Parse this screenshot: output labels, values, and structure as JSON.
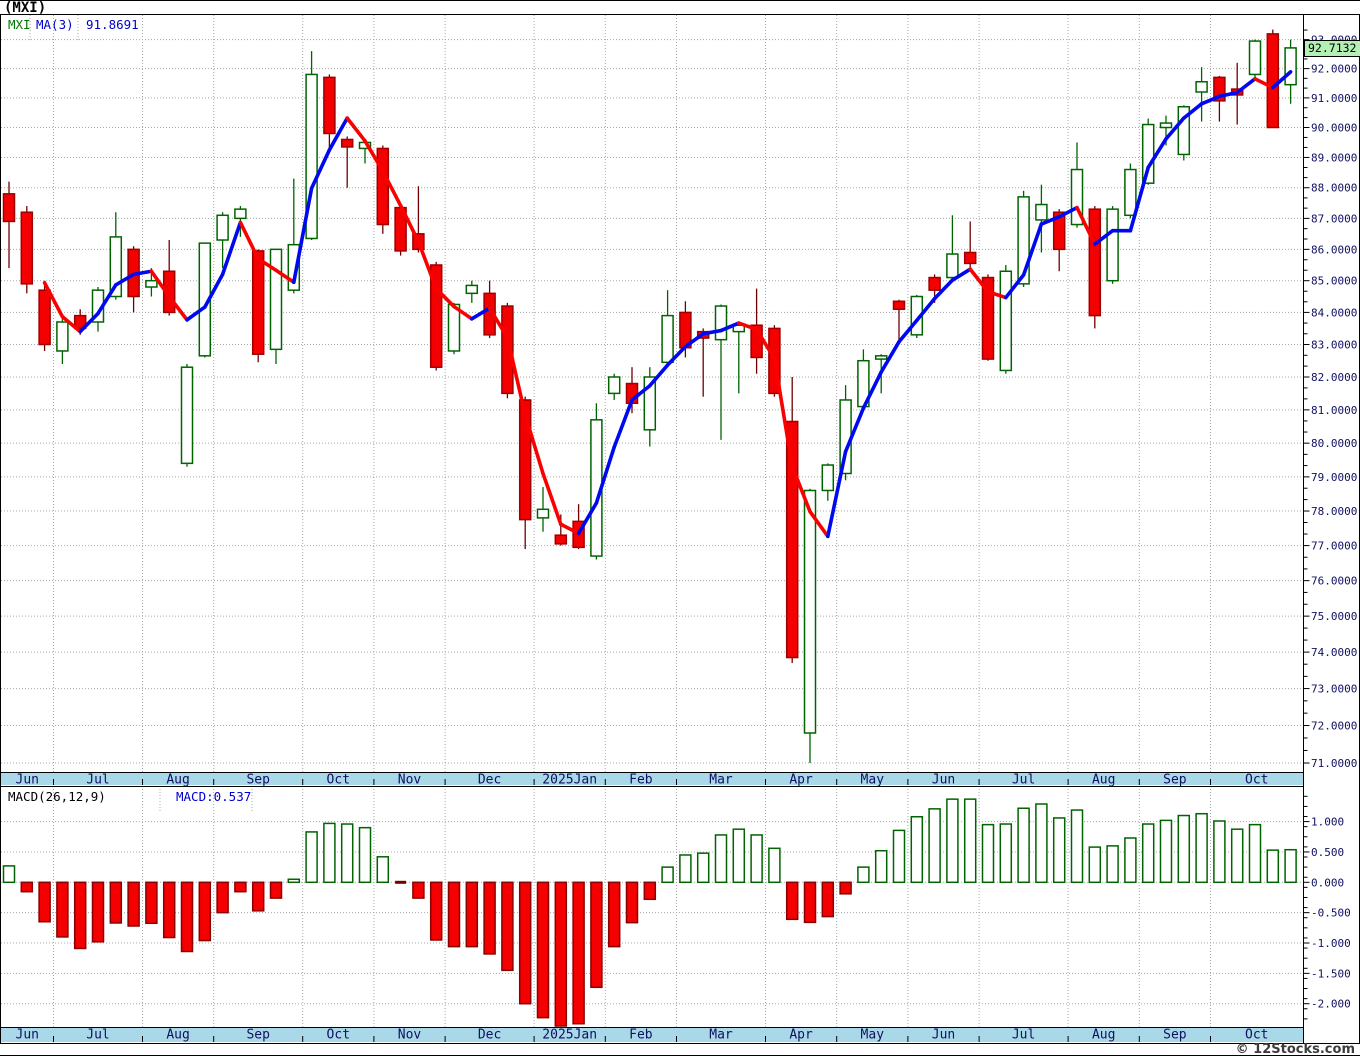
{
  "title": "(MXI)",
  "main_legend": {
    "symbol": "MXI",
    "ma_label": "MA(3)",
    "ma_value": "91.8691"
  },
  "macd_legend": {
    "label": "MACD(26,12,9)",
    "value": "MACD:0.537"
  },
  "last_price_badge": "92.7132",
  "copyright": "© 12Stocks.com",
  "colors": {
    "candle_up_border": "#006400",
    "candle_up_fill": "#ffffff",
    "candle_down_fill": "#f40000",
    "candle_down_border": "#9e0000",
    "wick_up": "#006400",
    "wick_down": "#700000",
    "ma_up": "#0008f0",
    "ma_down": "#fb0000",
    "grid": "#a8a8a8",
    "axis_text": "#101060",
    "month_text": "#101060",
    "ribbon_bg": "#a9d9e9",
    "badge_bg": "#b4f0b4",
    "macd_down_fill": "#f40000",
    "macd_down_border": "#8b0000",
    "macd_flat": "#7a0000",
    "border": "#000000"
  },
  "chart_data": [
    {
      "type": "candlestick",
      "symbol": "MXI",
      "title": "(MXI)",
      "interval": "weekly",
      "last_close": 92.7132,
      "overlay_ma": {
        "name": "MA(3)",
        "period": 3,
        "last_value": 91.8691
      },
      "yaxis": {
        "scale": "log",
        "min": 71,
        "max": 93,
        "step": 1,
        "tick_format": "0.0000",
        "ticks": [
          93,
          92,
          91,
          90,
          89,
          88,
          87,
          86,
          85,
          84,
          83,
          82,
          81,
          80,
          79,
          78,
          77,
          76,
          75,
          74,
          73,
          72,
          71
        ]
      },
      "x_months": [
        {
          "label": "Jun",
          "start": 0
        },
        {
          "label": "Jul",
          "start": 3
        },
        {
          "label": "Aug",
          "start": 8
        },
        {
          "label": "Sep",
          "start": 12
        },
        {
          "label": "Oct",
          "start": 17
        },
        {
          "label": "Nov",
          "start": 21
        },
        {
          "label": "Dec",
          "start": 25
        },
        {
          "label": "2025Jan",
          "start": 30
        },
        {
          "label": "Feb",
          "start": 34
        },
        {
          "label": "Mar",
          "start": 38
        },
        {
          "label": "Apr",
          "start": 43
        },
        {
          "label": "May",
          "start": 47
        },
        {
          "label": "Jun",
          "start": 51
        },
        {
          "label": "Jul",
          "start": 55
        },
        {
          "label": "Aug",
          "start": 60
        },
        {
          "label": "Sep",
          "start": 64
        },
        {
          "label": "Oct",
          "start": 68
        }
      ],
      "ohlc": [
        [
          87.8,
          88.2,
          85.4,
          86.9
        ],
        [
          87.2,
          87.4,
          84.6,
          84.9
        ],
        [
          84.7,
          85.0,
          82.8,
          83.0
        ],
        [
          82.8,
          83.9,
          82.4,
          83.7
        ],
        [
          83.9,
          84.1,
          83.3,
          83.5
        ],
        [
          83.7,
          84.8,
          83.4,
          84.7
        ],
        [
          84.5,
          87.2,
          84.4,
          86.4
        ],
        [
          86.0,
          86.1,
          84.0,
          84.5
        ],
        [
          84.8,
          85.4,
          84.5,
          85.0
        ],
        [
          85.3,
          86.3,
          83.9,
          84.0
        ],
        [
          79.4,
          82.4,
          79.3,
          82.3
        ],
        [
          82.65,
          86.2,
          82.6,
          86.2
        ],
        [
          86.3,
          87.2,
          85.4,
          87.1
        ],
        [
          87.0,
          87.4,
          86.4,
          87.3
        ],
        [
          85.95,
          86.0,
          82.45,
          82.7
        ],
        [
          82.85,
          86.0,
          82.4,
          86.0
        ],
        [
          84.7,
          88.3,
          84.6,
          86.15
        ],
        [
          86.35,
          92.6,
          86.3,
          91.8
        ],
        [
          91.7,
          91.8,
          89.3,
          89.8
        ],
        [
          89.6,
          89.7,
          88.0,
          89.35
        ],
        [
          89.3,
          89.6,
          88.8,
          89.5
        ],
        [
          89.3,
          89.4,
          86.5,
          86.8
        ],
        [
          87.35,
          87.4,
          85.8,
          85.95
        ],
        [
          86.5,
          88.05,
          85.9,
          86.0
        ],
        [
          85.5,
          85.6,
          82.2,
          82.3
        ],
        [
          82.8,
          84.3,
          82.7,
          84.25
        ],
        [
          84.6,
          85.0,
          84.3,
          84.85
        ],
        [
          84.6,
          85.0,
          83.2,
          83.3
        ],
        [
          84.2,
          84.3,
          81.35,
          81.5
        ],
        [
          81.3,
          81.4,
          76.9,
          77.75
        ],
        [
          77.8,
          78.7,
          77.4,
          78.05
        ],
        [
          77.3,
          77.9,
          77.0,
          77.05
        ],
        [
          77.7,
          78.2,
          76.9,
          76.95
        ],
        [
          76.7,
          81.2,
          76.6,
          80.7
        ],
        [
          81.5,
          82.1,
          81.3,
          82.0
        ],
        [
          81.8,
          82.3,
          80.9,
          81.2
        ],
        [
          80.4,
          82.3,
          79.9,
          82.0
        ],
        [
          82.45,
          84.7,
          82.4,
          83.9
        ],
        [
          84.0,
          84.35,
          82.6,
          82.9
        ],
        [
          83.4,
          83.5,
          81.4,
          83.2
        ],
        [
          83.15,
          84.25,
          80.1,
          84.2
        ],
        [
          83.4,
          83.65,
          81.5,
          83.6
        ],
        [
          83.6,
          84.75,
          82.1,
          82.6
        ],
        [
          83.5,
          83.6,
          81.4,
          81.5
        ],
        [
          80.65,
          82.0,
          73.7,
          73.85
        ],
        [
          71.8,
          78.65,
          71.0,
          78.6
        ],
        [
          78.6,
          79.4,
          78.3,
          79.35
        ],
        [
          79.1,
          81.75,
          78.9,
          81.3
        ],
        [
          81.1,
          82.85,
          81.0,
          82.5
        ],
        [
          82.55,
          82.7,
          81.5,
          82.65
        ],
        [
          84.35,
          84.4,
          83.15,
          84.1
        ],
        [
          83.3,
          84.55,
          83.2,
          84.5
        ],
        [
          85.1,
          85.2,
          84.3,
          84.7
        ],
        [
          85.1,
          87.1,
          85.0,
          85.85
        ],
        [
          85.9,
          86.9,
          85.4,
          85.55
        ],
        [
          85.1,
          85.2,
          82.5,
          82.55
        ],
        [
          82.2,
          85.5,
          82.1,
          85.3
        ],
        [
          84.9,
          87.9,
          84.8,
          87.7
        ],
        [
          86.95,
          88.1,
          85.9,
          87.45
        ],
        [
          87.2,
          87.3,
          85.3,
          86.0
        ],
        [
          86.8,
          89.5,
          86.7,
          88.6
        ],
        [
          87.3,
          87.4,
          83.5,
          83.9
        ],
        [
          85.0,
          87.4,
          84.9,
          87.3
        ],
        [
          87.1,
          88.8,
          87.0,
          88.6
        ],
        [
          88.15,
          90.3,
          88.1,
          90.1
        ],
        [
          90.0,
          90.4,
          89.4,
          90.15
        ],
        [
          89.1,
          90.75,
          88.9,
          90.7
        ],
        [
          91.2,
          92.05,
          90.2,
          91.55
        ],
        [
          91.7,
          91.75,
          90.2,
          90.9
        ],
        [
          91.3,
          92.2,
          90.1,
          91.1
        ],
        [
          91.8,
          93.0,
          91.7,
          92.95
        ],
        [
          93.2,
          93.35,
          90.0,
          90.0
        ],
        [
          91.45,
          93.0,
          90.8,
          92.7132
        ]
      ]
    },
    {
      "type": "bar",
      "name": "MACD(26,12,9)",
      "last_value": 0.537,
      "yaxis": {
        "min": -2.4,
        "max": 1.5,
        "step": 0.5,
        "tick_format": "0.000",
        "ticks": [
          1.0,
          0.5,
          0.0,
          -0.5,
          -1.0,
          -1.5,
          -2.0
        ]
      },
      "values": [
        0.27,
        -0.155,
        -0.65,
        -0.9,
        -1.09,
        -0.98,
        -0.67,
        -0.72,
        -0.675,
        -0.91,
        -1.14,
        -0.96,
        -0.5,
        -0.155,
        -0.47,
        -0.26,
        0.05,
        0.83,
        0.97,
        0.96,
        0.9,
        0.42,
        -0.01,
        -0.26,
        -0.95,
        -1.06,
        -1.06,
        -1.18,
        -1.45,
        -2.0,
        -2.23,
        -2.4,
        -2.33,
        -1.73,
        -1.06,
        -0.665,
        -0.28,
        0.25,
        0.45,
        0.48,
        0.78,
        0.875,
        0.78,
        0.56,
        -0.61,
        -0.66,
        -0.565,
        -0.19,
        0.25,
        0.52,
        0.855,
        1.08,
        1.21,
        1.37,
        1.37,
        0.95,
        0.96,
        1.22,
        1.29,
        1.06,
        1.19,
        0.58,
        0.6,
        0.73,
        0.96,
        1.02,
        1.1,
        1.13,
        1.01,
        0.875,
        0.95,
        0.53,
        0.537
      ]
    }
  ]
}
